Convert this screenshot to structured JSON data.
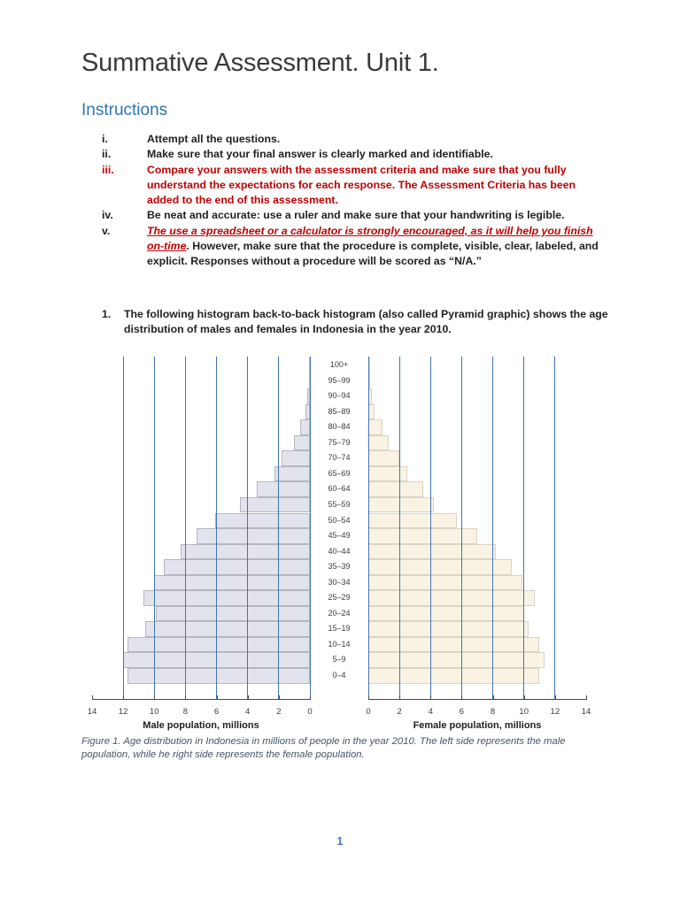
{
  "document": {
    "title": "Summative Assessment. Unit 1.",
    "page_number": "1"
  },
  "instructions": {
    "heading": "Instructions",
    "items": [
      {
        "num": "i.",
        "text": "Attempt all the questions."
      },
      {
        "num": "ii.",
        "text": "Make sure that your final answer is clearly marked and identifiable."
      },
      {
        "num": "iii.",
        "text": "Compare your answers with the assessment criteria and make sure that you fully understand the expectations for each response. The Assessment Criteria has been added to the end of this assessment."
      },
      {
        "num": "iv.",
        "text": "Be neat and accurate: use a ruler and make sure that your handwriting is legible."
      },
      {
        "num": "v.",
        "text_red_underlined": "The use a spreadsheet or a calculator is strongly encouraged, as it will help you finish on-time",
        "text_rest": ". However, make sure that the procedure is complete, visible, clear, labeled, and explicit. Responses without a procedure will be scored as “N/A.”"
      }
    ]
  },
  "question": {
    "num": "1.",
    "text": "The following histogram back-to-back histogram (also called Pyramid graphic) shows the age distribution of males and females in Indonesia in the year 2010."
  },
  "chart_data": {
    "type": "bar",
    "variant": "back-to-back population pyramid",
    "title": "",
    "age_groups_top_to_bottom": [
      "100+",
      "95–99",
      "90–94",
      "85–89",
      "80–84",
      "75–79",
      "70–74",
      "65–69",
      "60–64",
      "55–59",
      "50–54",
      "45–49",
      "40–44",
      "35–39",
      "30–34",
      "25–29",
      "20–24",
      "15–19",
      "10–14",
      "5–9",
      "0–4"
    ],
    "series": [
      {
        "name": "Male",
        "direction": "left",
        "axis_label": "Male population, millions",
        "values_top_to_bottom": [
          0.03,
          0.08,
          0.15,
          0.3,
          0.6,
          1.0,
          1.8,
          2.3,
          3.4,
          4.5,
          6.1,
          7.3,
          8.3,
          9.4,
          10.0,
          10.7,
          9.9,
          10.6,
          11.7,
          12.0,
          11.7
        ]
      },
      {
        "name": "Female",
        "direction": "right",
        "axis_label": "Female population, millions",
        "values_top_to_bottom": [
          0.03,
          0.07,
          0.2,
          0.4,
          0.9,
          1.3,
          2.0,
          2.5,
          3.5,
          4.2,
          5.7,
          7.0,
          8.2,
          9.2,
          9.9,
          10.7,
          10.0,
          10.3,
          11.0,
          11.3,
          11.0
        ]
      }
    ],
    "x_axis": {
      "range": [
        0,
        14
      ],
      "tick_step": 2,
      "male_tick_labels": [
        "14",
        "12",
        "10",
        "8",
        "6",
        "4",
        "2",
        "0"
      ],
      "female_tick_labels": [
        "0",
        "2",
        "4",
        "6",
        "8",
        "10",
        "12",
        "14"
      ],
      "gridlines_at": [
        0,
        2,
        4,
        6,
        8,
        10,
        12
      ]
    },
    "grid": true,
    "colors": {
      "male_bar_fill": "#e3e3ee",
      "male_bar_border": "#b6b6c2",
      "female_bar_fill": "#faf3e3",
      "female_bar_border": "#d9d4c6",
      "gridline": "#4374ad",
      "axis": "#4a4a4a"
    }
  },
  "figure_caption": "Figure 1. Age distribution in Indonesia in millions of people in the year 2010. The left side represents the male population, while he right side represents the female population.",
  "theme": {
    "heading_blue": "#2e74b5",
    "emphasis_red": "#c00000",
    "caption_color": "#44546a",
    "page_number_color": "#4472c4"
  }
}
